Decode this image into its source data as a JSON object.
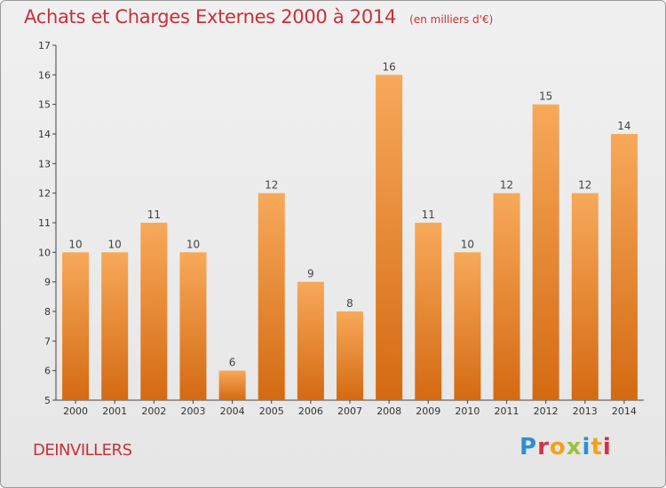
{
  "header": {
    "title": "Achats et Charges Externes 2000 à 2014",
    "unit": "(en milliers d'€)"
  },
  "commune": "DEINVILLERS",
  "logo": {
    "text": "Proxiti"
  },
  "colors": {
    "title": "#c8303a",
    "bar_top": "#f7a95a",
    "bar_bottom": "#d46a12",
    "axis": "#444444"
  },
  "chart_data": {
    "type": "bar",
    "title": "Achats et Charges Externes 2000 à 2014",
    "subtitle": "(en milliers d'€)",
    "categories": [
      "2000",
      "2001",
      "2002",
      "2003",
      "2004",
      "2005",
      "2006",
      "2007",
      "2008",
      "2009",
      "2010",
      "2011",
      "2012",
      "2013",
      "2014"
    ],
    "values": [
      10,
      10,
      11,
      10,
      6,
      12,
      9,
      8,
      16,
      11,
      10,
      12,
      15,
      12,
      14
    ],
    "ylim": [
      5,
      17
    ],
    "yticks": [
      5,
      6,
      7,
      8,
      9,
      10,
      11,
      12,
      13,
      14,
      15,
      16,
      17
    ],
    "grid": false,
    "data_labels": true
  }
}
